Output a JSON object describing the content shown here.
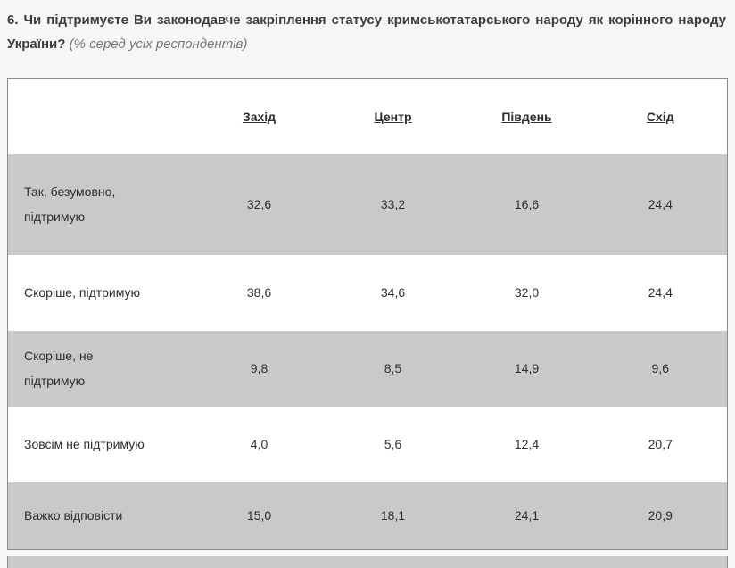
{
  "page": {
    "question_bold": "6. Чи підтримуєте Ви законодавче закріплення статусу кримськотатарського народу як корінного народу України?",
    "question_note": "(% серед усіх респондентів)"
  },
  "chart_data": {
    "type": "table",
    "title": "6. Чи підтримуєте Ви законодавче закріплення статусу кримськотатарського народу як корінного народу України? (% серед усіх респондентів)",
    "columns": [
      "Захід",
      "Центр",
      "Південь",
      "Схід"
    ],
    "rows": [
      {
        "label": "Так, безумовно, підтримую",
        "values": [
          "32,6",
          "33,2",
          "16,6",
          "24,4"
        ]
      },
      {
        "label": "Скоріше, підтримую",
        "values": [
          "38,6",
          "34,6",
          "32,0",
          "24,4"
        ]
      },
      {
        "label": "Скоріше, не підтримую",
        "values": [
          "9,8",
          "8,5",
          "14,9",
          "9,6"
        ]
      },
      {
        "label": "Зовсім не підтримую",
        "values": [
          "4,0",
          "5,6",
          "12,4",
          "20,7"
        ]
      },
      {
        "label": "Важко відповісти",
        "values": [
          "15,0",
          "18,1",
          "24,1",
          "20,9"
        ]
      }
    ],
    "layout": {
      "stripe_pattern": "odd-rows-gray",
      "header_style": "bold-underline",
      "value_decimal_separator": ","
    },
    "colors": {
      "stripe_gray": "#c9c9c9",
      "row_white": "#ffffff",
      "table_border": "#8a8a8a",
      "page_background": "#f6f6f6",
      "title_text": "#3c3c3c",
      "note_text": "#767676"
    }
  }
}
